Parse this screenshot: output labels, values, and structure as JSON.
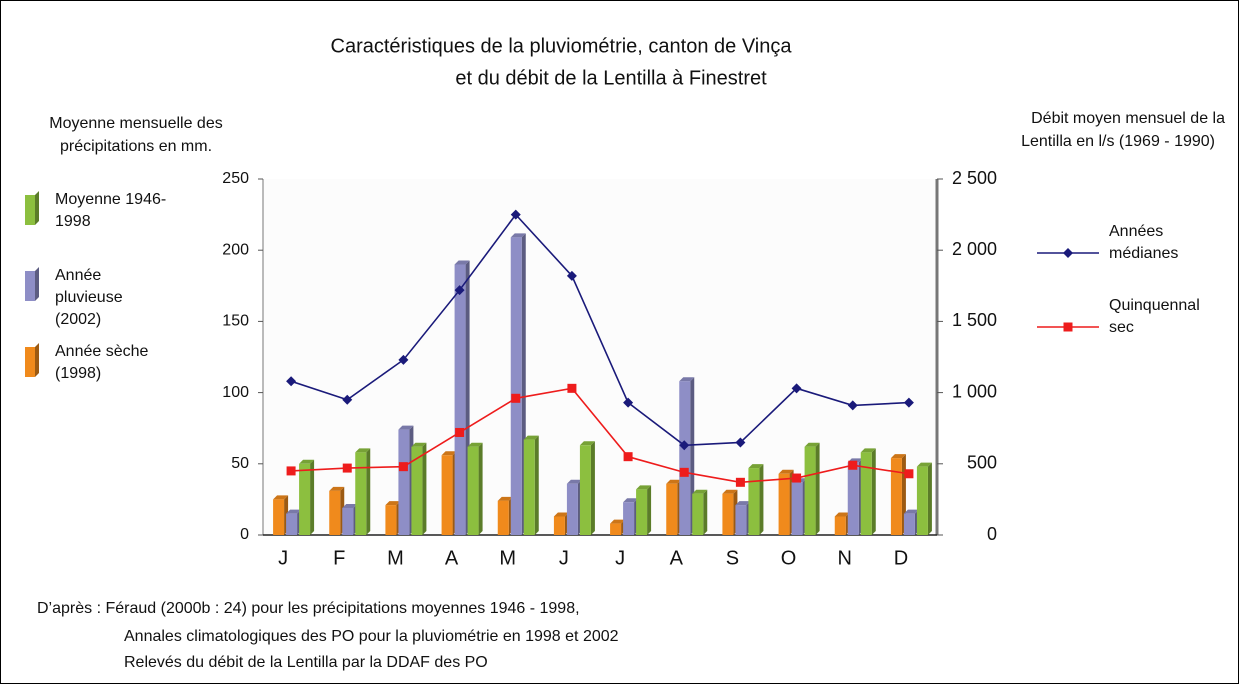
{
  "chart_data": {
    "type": "bar-line",
    "title": [
      "Caractéristiques de la pluviométrie, canton de Vinça",
      "et du débit de la Lentilla à Finestret"
    ],
    "ylabel": [
      "Moyenne mensuelle des",
      "précipitations en mm."
    ],
    "y2label": [
      "Débit moyen mensuel de la",
      "Lentilla en l/s (1969 - 1990)"
    ],
    "categories": [
      "J",
      "F",
      "M",
      "A",
      "M",
      "J",
      "J",
      "A",
      "S",
      "O",
      "N",
      "D"
    ],
    "series": [
      {
        "name": "Année sèche (1998)",
        "color": "#f08a1c",
        "values": [
          25,
          31,
          21,
          56,
          24,
          13,
          8,
          36,
          29,
          43,
          13,
          54
        ]
      },
      {
        "name": "Année pluvieuse (2002)",
        "color": "#8e8ec6",
        "values": [
          15,
          19,
          74,
          190,
          209,
          36,
          23,
          108,
          21,
          37,
          51,
          15
        ]
      },
      {
        "name": "Moyenne 1946-1998",
        "color": "#8cbf3f",
        "values": [
          50,
          58,
          62,
          62,
          67,
          63,
          32,
          29,
          47,
          62,
          58,
          48
        ]
      },
      {
        "name": "Années médianes",
        "color": "#1a1a7a",
        "axis": "y2",
        "values": [
          1080,
          950,
          1230,
          1720,
          2250,
          1820,
          930,
          630,
          650,
          1030,
          910,
          930
        ]
      },
      {
        "name": "Quinquennal sec",
        "color": "#ee1c1c",
        "axis": "y2",
        "values": [
          450,
          470,
          480,
          720,
          960,
          1030,
          550,
          440,
          370,
          400,
          490,
          430
        ]
      }
    ],
    "ylim": [
      0,
      250
    ],
    "yticks": [
      0,
      50,
      100,
      150,
      200,
      250
    ],
    "y2lim": [
      0,
      2500
    ],
    "y2ticks": [
      0,
      500,
      {
        "value": 1000,
        "label": "1 000"
      },
      {
        "value": 1500,
        "label": "1 500"
      },
      {
        "value": 2000,
        "label": "2 000"
      },
      {
        "value": 2500,
        "label": "2 500"
      }
    ],
    "source": [
      "D’après : Féraud (2000b : 24) pour les précipitations moyennes 1946 - 1998,",
      "Annales climatologiques des PO pour la pluviométrie en 1998 et 2002",
      "Relevés du débit de la Lentilla par la DDAF des PO"
    ]
  }
}
